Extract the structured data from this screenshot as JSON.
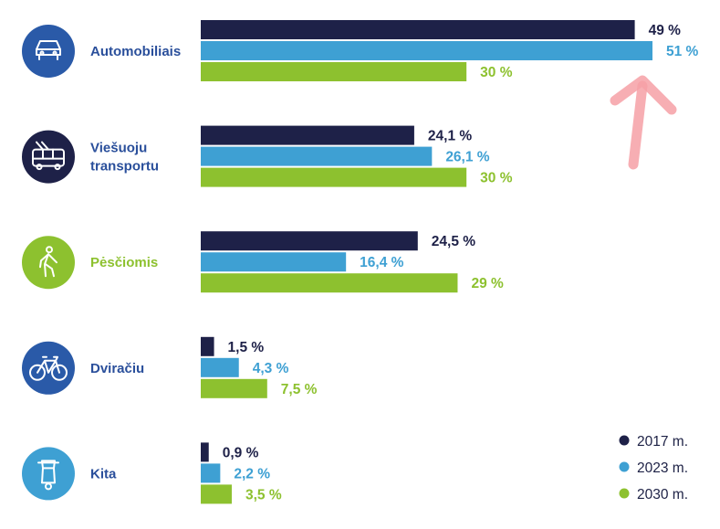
{
  "colors": {
    "s2017": "#1e2148",
    "s2023": "#3ea0d3",
    "s2030": "#8dc12f",
    "icon_bg_blue": "#2a5aa8",
    "icon_bg_navy": "#1e2148",
    "icon_bg_green": "#8dc12f",
    "icon_bg_light": "#3ea0d3",
    "label_default": "#2a4f9b",
    "label_green": "#8dc12f"
  },
  "chart_data": {
    "type": "bar",
    "orientation": "horizontal",
    "categories": [
      "Automobiliais",
      "Viešuoju transportu",
      "Pėsčiomis",
      "Dviračiu",
      "Kita"
    ],
    "category_lines": [
      [
        "Automobiliais"
      ],
      [
        "Viešuoju",
        "transportu"
      ],
      [
        "Pėsčiomis"
      ],
      [
        "Dviračiu"
      ],
      [
        "Kita"
      ]
    ],
    "category_icons": [
      "car-icon",
      "trolleybus-icon",
      "pedestrian-icon",
      "bicycle-icon",
      "scooter-icon"
    ],
    "series": [
      {
        "name": "2017 m.",
        "values": [
          49,
          24.1,
          24.5,
          1.5,
          0.9
        ],
        "labels": [
          "49 %",
          "24,1 %",
          "24,5 %",
          "1,5 %",
          "0,9 %"
        ]
      },
      {
        "name": "2023 m.",
        "values": [
          51,
          26.1,
          16.4,
          4.3,
          2.2
        ],
        "labels": [
          "51 %",
          "26,1 %",
          "16,4 %",
          "4,3 %",
          "2,2 %"
        ]
      },
      {
        "name": "2030 m.",
        "values": [
          30,
          30,
          29,
          7.5,
          3.5
        ],
        "labels": [
          "30 %",
          "30 %",
          "29 %",
          "7,5 %",
          "3,5 %"
        ]
      }
    ],
    "xlim": [
      0,
      51
    ],
    "grid": false,
    "legend_position": "bottom-right",
    "annotation": "hand-drawn-arrow-pointing-at-51"
  }
}
